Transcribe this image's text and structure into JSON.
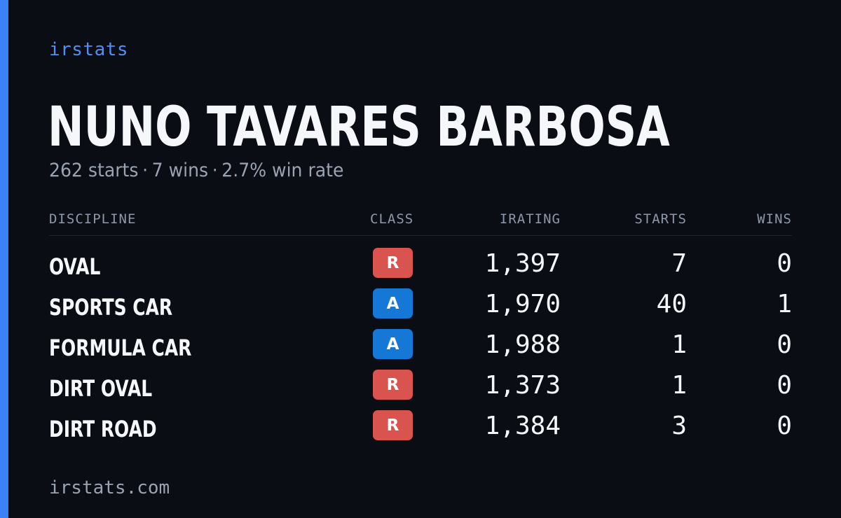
{
  "brand": "irstats",
  "driver": {
    "name": "NUNO TAVARES BARBOSA",
    "starts_text": "262 starts",
    "wins_text": "7 wins",
    "win_rate_text": "2.7% win rate",
    "separator": "·"
  },
  "table": {
    "headers": {
      "discipline": "DISCIPLINE",
      "class": "CLASS",
      "irating": "IRATING",
      "starts": "STARTS",
      "wins": "WINS"
    },
    "rows": [
      {
        "discipline": "OVAL",
        "class": "R",
        "irating": "1,397",
        "starts": "7",
        "wins": "0"
      },
      {
        "discipline": "SPORTS CAR",
        "class": "A",
        "irating": "1,970",
        "starts": "40",
        "wins": "1"
      },
      {
        "discipline": "FORMULA CAR",
        "class": "A",
        "irating": "1,988",
        "starts": "1",
        "wins": "0"
      },
      {
        "discipline": "DIRT OVAL",
        "class": "R",
        "irating": "1,373",
        "starts": "1",
        "wins": "0"
      },
      {
        "discipline": "DIRT ROAD",
        "class": "R",
        "irating": "1,384",
        "starts": "3",
        "wins": "0"
      }
    ]
  },
  "class_colors": {
    "R": "#d9534f",
    "A": "#1577d6"
  },
  "colors": {
    "accent": "#3b82f6",
    "background": "#0a0d14"
  },
  "footer": "irstats.com"
}
